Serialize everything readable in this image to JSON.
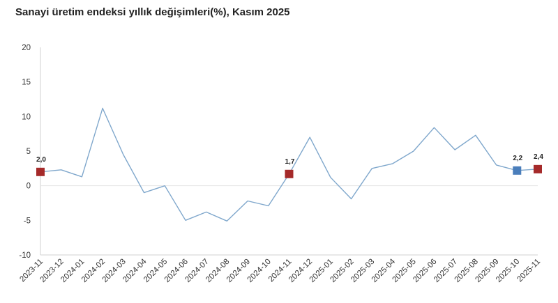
{
  "chart_data": {
    "type": "line",
    "title": "Sanayi üretim endeksi yıllık değişimleri(%), Kasım 2025",
    "xlabel": "",
    "ylabel": "",
    "ylim": [
      -10,
      20
    ],
    "yticks": [
      -10,
      -5,
      0,
      5,
      10,
      15,
      20
    ],
    "grid": false,
    "legend": "none",
    "categories": [
      "2023-11",
      "2023-12",
      "2024-01",
      "2024-02",
      "2024-03",
      "2024-04",
      "2024-05",
      "2024-06",
      "2024-07",
      "2024-08",
      "2024-09",
      "2024-10",
      "2024-11",
      "2024-12",
      "2025-01",
      "2025-02",
      "2025-03",
      "2025-04",
      "2025-05",
      "2025-06",
      "2025-07",
      "2025-08",
      "2025-09",
      "2025-10",
      "2025-11"
    ],
    "series": [
      {
        "values": [
          2.0,
          2.3,
          1.3,
          11.2,
          4.5,
          -1.0,
          0.0,
          -5.0,
          -3.8,
          -5.1,
          -2.2,
          -2.9,
          1.7,
          7.0,
          1.2,
          -1.9,
          2.5,
          3.2,
          5.0,
          8.4,
          5.2,
          7.3,
          3.0,
          2.2,
          2.4
        ],
        "color": "#7fa7cc"
      }
    ],
    "markers": [
      {
        "index": 0,
        "label": "2,0",
        "color": "#a52a2a"
      },
      {
        "index": 12,
        "label": "1,7",
        "color": "#a52a2a"
      },
      {
        "index": 23,
        "label": "2,2",
        "color": "#4a7ebb"
      },
      {
        "index": 24,
        "label": "2,4",
        "color": "#a52a2a"
      }
    ],
    "colors": {
      "line": "#7fa7cc",
      "axis": "#d0d0d0",
      "zero_line": "#e4e4e4",
      "highlight": "#a52a2a",
      "latest_prior": "#4a7ebb"
    }
  }
}
